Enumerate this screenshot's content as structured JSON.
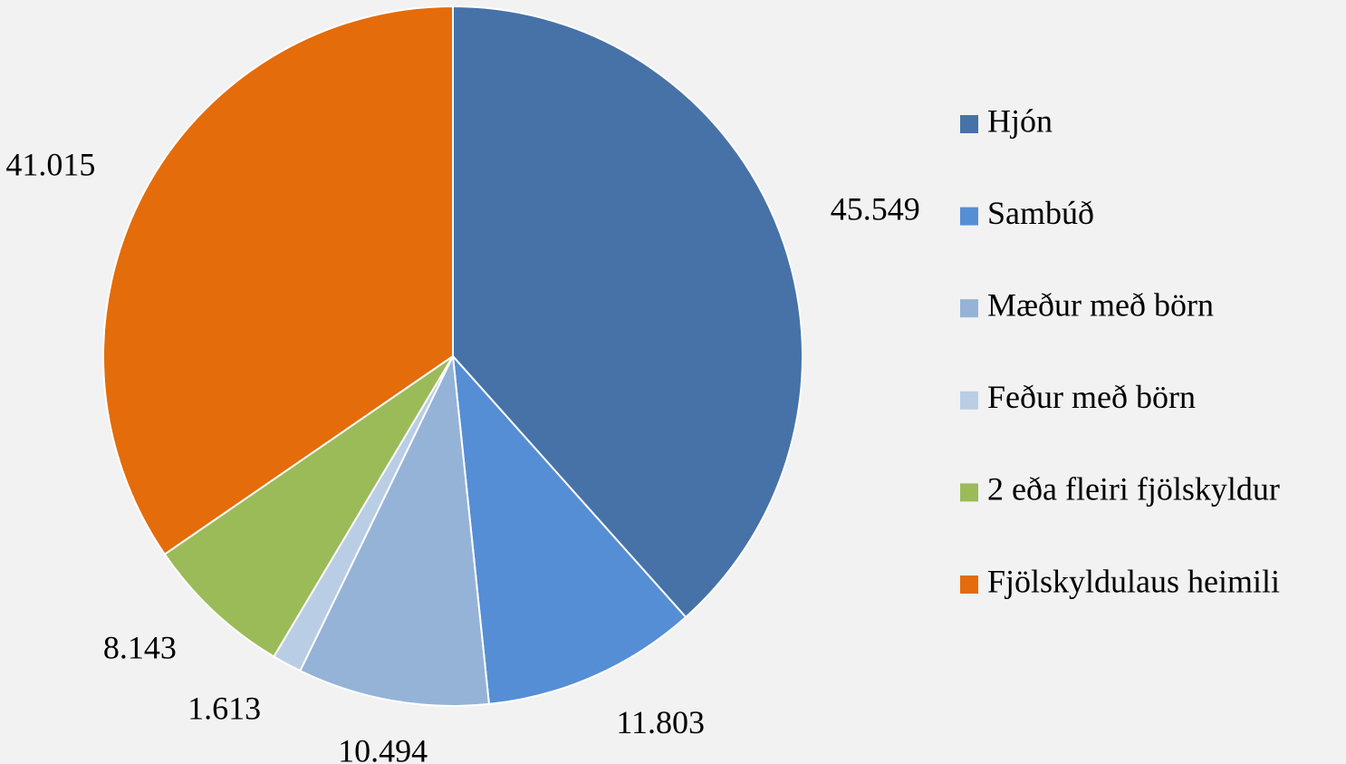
{
  "chart_data": {
    "type": "pie",
    "categories": [
      "Hjón",
      "Sambúð",
      "Mæður með börn",
      "Feður með börn",
      "2 eða fleiri fjölskyldur",
      "Fjölskyldulaus heimili"
    ],
    "values": [
      45549,
      11803,
      10494,
      1613,
      8143,
      41015
    ],
    "value_labels": [
      "45.549",
      "11.803",
      "10.494",
      "1.613",
      "8.143",
      "41.015"
    ],
    "colors": [
      "#4672a8",
      "#558ed5",
      "#95b3d7",
      "#b9cde5",
      "#9bbb59",
      "#e46c0a"
    ],
    "legend": "right"
  }
}
